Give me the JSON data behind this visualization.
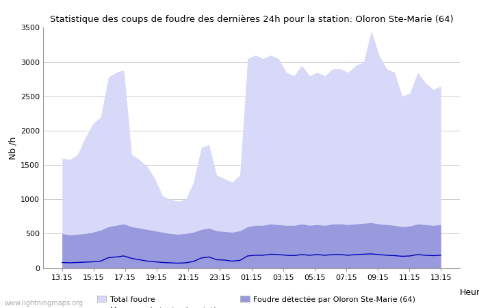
{
  "title": "Statistique des coups de foudre des dernières 24h pour la station: Oloron Ste-Marie (64)",
  "xlabel": "Heure",
  "ylabel": "Nb /h",
  "ylim": [
    0,
    3500
  ],
  "yticks": [
    0,
    500,
    1000,
    1500,
    2000,
    2500,
    3000,
    3500
  ],
  "x_tick_labels": [
    "13:15",
    "15:15",
    "17:15",
    "19:15",
    "21:15",
    "23:15",
    "01:15",
    "03:15",
    "05:15",
    "07:15",
    "09:15",
    "11:15",
    "13:15"
  ],
  "bg_color": "#ffffff",
  "plot_bg_color": "#ffffff",
  "grid_color": "#cccccc",
  "total_foudre_color": "#d8d8f8",
  "detected_color": "#9999dd",
  "mean_line_color": "#0000bb",
  "watermark": "www.lightningmaps.org",
  "total_foudre": [
    1600,
    1580,
    1650,
    1900,
    2100,
    2200,
    2780,
    2850,
    2880,
    1650,
    1580,
    1480,
    1300,
    1050,
    1000,
    970,
    1000,
    1250,
    1750,
    1800,
    1350,
    1300,
    1250,
    1350,
    3050,
    3100,
    3050,
    3100,
    3050,
    2850,
    2800,
    2950,
    2800,
    2850,
    2800,
    2900,
    2900,
    2850,
    2950,
    3000,
    3450,
    3100,
    2900,
    2850,
    2500,
    2550,
    2850,
    2700,
    2600,
    2650
  ],
  "detected_foudre": [
    500,
    480,
    490,
    500,
    520,
    550,
    600,
    620,
    640,
    600,
    580,
    560,
    540,
    520,
    500,
    490,
    500,
    520,
    560,
    580,
    540,
    530,
    520,
    540,
    600,
    620,
    620,
    640,
    630,
    620,
    620,
    640,
    620,
    630,
    620,
    640,
    640,
    630,
    640,
    650,
    660,
    640,
    630,
    620,
    600,
    610,
    640,
    630,
    620,
    630
  ],
  "mean_line": [
    80,
    75,
    80,
    85,
    90,
    100,
    150,
    160,
    175,
    140,
    120,
    100,
    90,
    80,
    75,
    70,
    75,
    95,
    145,
    160,
    120,
    115,
    100,
    110,
    175,
    185,
    185,
    200,
    195,
    185,
    180,
    195,
    185,
    195,
    185,
    195,
    195,
    185,
    195,
    200,
    205,
    195,
    185,
    180,
    170,
    175,
    195,
    185,
    180,
    185
  ]
}
